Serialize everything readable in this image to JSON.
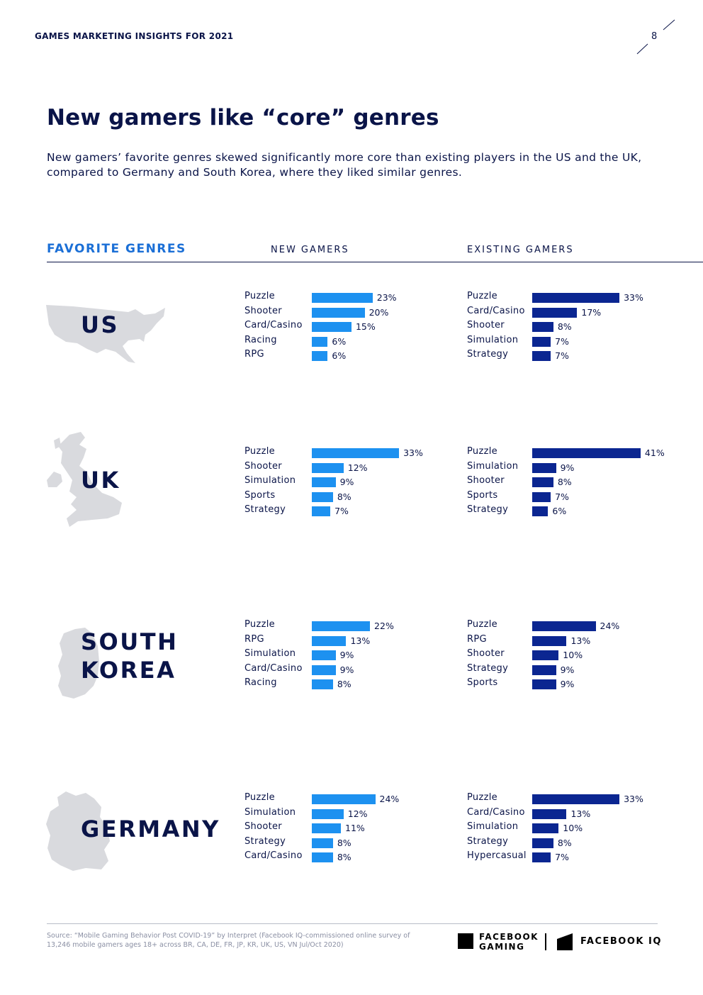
{
  "header": {
    "title": "GAMES MARKETING INSIGHTS FOR 2021",
    "page_number": "8"
  },
  "main": {
    "title": "New gamers like “core” genres",
    "subtitle": "New gamers’ favorite genres skewed significantly more core than existing players in the US and the UK, compared to Germany and South Korea, where they liked similar genres."
  },
  "columns": {
    "favorite": "FAVORITE GENRES",
    "new": "NEW GAMERS",
    "existing": "EXISTING GAMERS"
  },
  "colors": {
    "new": "#1d91f0",
    "existing": "#0b2691",
    "map": "#d9dade"
  },
  "chart_data": [
    {
      "type": "bar",
      "orientation": "horizontal",
      "country": "US",
      "series": "New gamers",
      "categories": [
        "Puzzle",
        "Shooter",
        "Card/Casino",
        "Racing",
        "RPG"
      ],
      "values": [
        23,
        20,
        15,
        6,
        6
      ],
      "labels": [
        "23%",
        "20%",
        "15%",
        "6%",
        "6%"
      ]
    },
    {
      "type": "bar",
      "orientation": "horizontal",
      "country": "US",
      "series": "Existing gamers",
      "categories": [
        "Puzzle",
        "Card/Casino",
        "Shooter",
        "Simulation",
        "Strategy"
      ],
      "values": [
        33,
        17,
        8,
        7,
        7
      ],
      "labels": [
        "33%",
        "17%",
        "8%",
        "7%",
        "7%"
      ]
    },
    {
      "type": "bar",
      "orientation": "horizontal",
      "country": "UK",
      "series": "New gamers",
      "categories": [
        "Puzzle",
        "Shooter",
        "Simulation",
        "Sports",
        "Strategy"
      ],
      "values": [
        33,
        12,
        9,
        8,
        7
      ],
      "labels": [
        "33%",
        "12%",
        "9%",
        "8%",
        "7%"
      ]
    },
    {
      "type": "bar",
      "orientation": "horizontal",
      "country": "UK",
      "series": "Existing gamers",
      "categories": [
        "Puzzle",
        "Simulation",
        "Shooter",
        "Sports",
        "Strategy"
      ],
      "values": [
        41,
        9,
        8,
        7,
        6
      ],
      "labels": [
        "41%",
        "9%",
        "8%",
        "7%",
        "6%"
      ]
    },
    {
      "type": "bar",
      "orientation": "horizontal",
      "country": "South Korea",
      "series": "New gamers",
      "categories": [
        "Puzzle",
        "RPG",
        "Simulation",
        "Card/Casino",
        "Racing"
      ],
      "values": [
        22,
        13,
        9,
        9,
        8
      ],
      "labels": [
        "22%",
        "13%",
        "9%",
        "9%",
        "8%"
      ]
    },
    {
      "type": "bar",
      "orientation": "horizontal",
      "country": "South Korea",
      "series": "Existing gamers",
      "categories": [
        "Puzzle",
        "RPG",
        "Shooter",
        "Strategy",
        "Sports"
      ],
      "values": [
        24,
        13,
        10,
        9,
        9
      ],
      "labels": [
        "24%",
        "13%",
        "10%",
        "9%",
        "9%"
      ]
    },
    {
      "type": "bar",
      "orientation": "horizontal",
      "country": "Germany",
      "series": "New gamers",
      "categories": [
        "Puzzle",
        "Simulation",
        "Shooter",
        "Strategy",
        "Card/Casino"
      ],
      "values": [
        24,
        12,
        11,
        8,
        8
      ],
      "labels": [
        "24%",
        "12%",
        "11%",
        "8%",
        "8%"
      ]
    },
    {
      "type": "bar",
      "orientation": "horizontal",
      "country": "Germany",
      "series": "Existing gamers",
      "categories": [
        "Puzzle",
        "Card/Casino",
        "Simulation",
        "Strategy",
        "Hypercasual"
      ],
      "values": [
        33,
        13,
        10,
        8,
        7
      ],
      "labels": [
        "33%",
        "13%",
        "10%",
        "8%",
        "7%"
      ]
    }
  ],
  "countries": [
    {
      "name_lines": [
        "US"
      ]
    },
    {
      "name_lines": [
        "UK"
      ]
    },
    {
      "name_lines": [
        "SOUTH",
        "KOREA"
      ]
    },
    {
      "name_lines": [
        "GERMANY"
      ]
    }
  ],
  "footer": {
    "source": "Source: “Mobile Gaming Behavior Post COVID-19” by Interpret (Facebook IQ-commissioned online survey of 13,246 mobile gamers ages 18+ across BR, CA, DE, FR, JP, KR, UK, US, VN Jul/Oct 2020)",
    "logo1_line1": "FACEBOOK",
    "logo1_line2": "GAMING",
    "logo2": "FACEBOOK IQ"
  }
}
